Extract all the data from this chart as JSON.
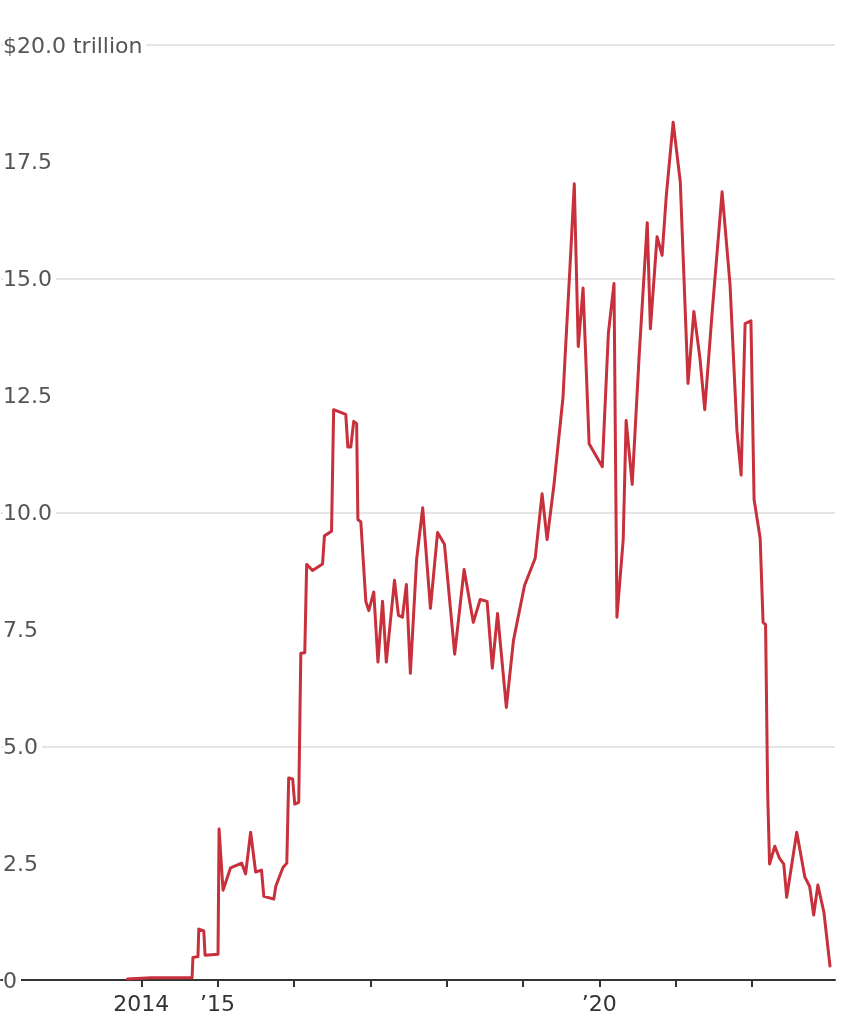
{
  "chart_data": {
    "type": "line",
    "x": [
      "2013-10-27",
      "2014-02-17",
      "2014-09-01",
      "2014-09-05",
      "2014-09-29",
      "2014-10-03",
      "2014-10-27",
      "2014-11-02",
      "2015-01-03",
      "2015-01-08",
      "2015-01-27",
      "2015-03-04",
      "2015-04-26",
      "2015-05-15",
      "2015-06-08",
      "2015-07-02",
      "2015-07-30",
      "2015-08-10",
      "2015-09-27",
      "2015-10-06",
      "2015-11-09",
      "2015-11-28",
      "2015-12-07",
      "2015-12-26",
      "2016-01-05",
      "2016-01-24",
      "2016-02-03",
      "2016-02-22",
      "2016-03-02",
      "2016-03-30",
      "2016-05-17",
      "2016-05-26",
      "2016-06-29",
      "2016-07-09",
      "2016-09-05",
      "2016-09-15",
      "2016-09-29",
      "2016-10-13",
      "2016-10-27",
      "2016-11-02",
      "2016-11-16",
      "2016-12-10",
      "2016-12-24",
      "2017-01-17",
      "2017-02-06",
      "2017-02-28",
      "2017-03-18",
      "2017-04-26",
      "2017-05-15",
      "2017-06-03",
      "2017-06-22",
      "2017-07-11",
      "2017-08-10",
      "2017-09-08",
      "2017-10-15",
      "2017-11-18",
      "2017-12-21",
      "2018-02-08",
      "2018-03-25",
      "2018-05-08",
      "2018-06-10",
      "2018-07-13",
      "2018-08-07",
      "2018-09-01",
      "2018-10-13",
      "2018-11-16",
      "2019-01-08",
      "2019-02-28",
      "2019-04-02",
      "2019-04-26",
      "2019-05-29",
      "2019-07-11",
      "2019-07-21",
      "2019-08-14",
      "2019-09-03",
      "2019-09-22",
      "2019-10-15",
      "2019-11-13",
      "2020-01-15",
      "2020-02-13",
      "2020-03-11",
      "2020-03-25",
      "2020-04-24",
      "2020-05-08",
      "2020-06-06",
      "2020-07-09",
      "2020-08-17",
      "2020-09-01",
      "2020-10-03",
      "2020-10-27",
      "2020-11-16",
      "2020-12-19",
      "2021-01-22",
      "2021-02-28",
      "2021-03-28",
      "2021-04-26",
      "2021-05-19",
      "2021-06-22",
      "2021-08-10",
      "2021-09-17",
      "2021-10-20",
      "2021-11-09",
      "2021-11-28",
      "2021-12-26",
      "2022-01-10",
      "2022-02-08",
      "2022-02-22",
      "2022-03-06",
      "2022-03-16",
      "2022-03-25",
      "2022-04-19",
      "2022-05-12",
      "2022-06-01",
      "2022-06-15",
      "2022-08-02",
      "2022-09-10",
      "2022-10-03",
      "2022-10-22",
      "2022-11-11",
      "2022-12-10",
      "2023-01-08"
    ],
    "series": [
      {
        "color": "#c8303c",
        "values": [
          0.02,
          0.05,
          0.05,
          0.48,
          0.5,
          1.09,
          1.05,
          0.53,
          0.55,
          3.23,
          1.92,
          2.4,
          2.5,
          2.27,
          3.16,
          2.31,
          2.35,
          1.79,
          1.73,
          2.0,
          2.4,
          2.5,
          4.32,
          4.3,
          3.76,
          3.8,
          6.99,
          7.0,
          8.89,
          8.76,
          8.9,
          9.5,
          9.6,
          12.2,
          12.1,
          11.4,
          11.4,
          11.95,
          11.9,
          9.85,
          9.8,
          8.1,
          7.9,
          8.3,
          6.8,
          8.1,
          6.8,
          8.55,
          7.8,
          7.76,
          8.46,
          6.56,
          9.0,
          10.1,
          7.95,
          9.57,
          9.32,
          6.97,
          8.78,
          7.65,
          8.14,
          8.1,
          6.67,
          7.84,
          5.83,
          7.26,
          8.44,
          9.02,
          10.4,
          9.42,
          10.6,
          12.46,
          13.33,
          15.3,
          17.03,
          13.55,
          14.8,
          11.47,
          10.98,
          13.83,
          14.9,
          7.76,
          9.42,
          11.97,
          10.6,
          13.33,
          16.2,
          13.93,
          15.9,
          15.5,
          16.77,
          18.35,
          17.07,
          12.76,
          14.3,
          13.3,
          12.2,
          14.2,
          16.86,
          14.87,
          11.75,
          10.8,
          14.04,
          14.1,
          10.28,
          9.45,
          7.65,
          7.6,
          4.0,
          2.48,
          2.86,
          2.6,
          2.48,
          1.77,
          3.16,
          2.2,
          2.0,
          1.39,
          2.03,
          1.45,
          0.3
        ]
      }
    ],
    "xlim": [
      "2012-03-01",
      "2023-02-01"
    ],
    "xticks": [
      {
        "value": "2014",
        "label": "2014"
      },
      {
        "value": "2015",
        "label": "’15"
      },
      {
        "value": "2016",
        "label": null
      },
      {
        "value": "2017",
        "label": null
      },
      {
        "value": "2018",
        "label": null
      },
      {
        "value": "2019",
        "label": null
      },
      {
        "value": "2020",
        "label": "’20"
      },
      {
        "value": "2021",
        "label": null
      },
      {
        "value": "2022",
        "label": null
      }
    ],
    "ylim": [
      0,
      20
    ],
    "yticks": [
      0,
      2.5,
      {
        "value": 5,
        "label": "5.0"
      },
      7.5,
      {
        "value": 10,
        "label": "10.0"
      },
      12.5,
      {
        "value": 15,
        "label": "15.0"
      },
      17.5,
      {
        "value": 20,
        "label": "$20.0 trillion"
      }
    ],
    "grid": "y",
    "marker": "none",
    "line_style": "solid"
  }
}
